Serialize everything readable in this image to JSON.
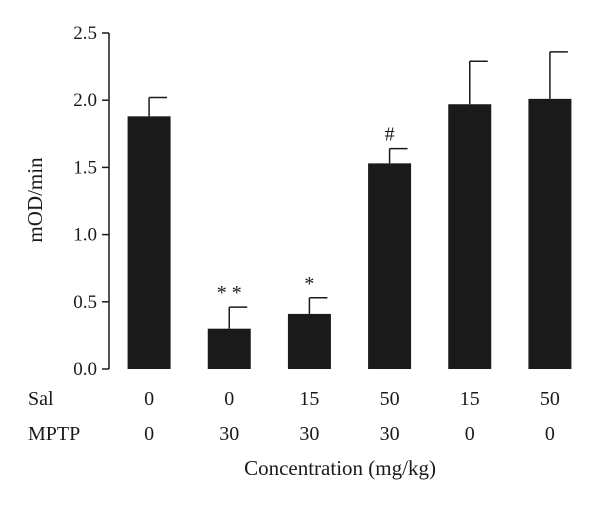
{
  "chart_data": {
    "type": "bar",
    "ylabel": "mOD/min",
    "xlabel": "Concentration (mg/kg)",
    "ylim": [
      0,
      2.5
    ],
    "yticks": [
      "0.0",
      "0.5",
      "1.0",
      "1.5",
      "2.0",
      "2.5"
    ],
    "grid": false,
    "bar_color": "#1a1a1a",
    "group_rows": [
      {
        "name": "Sal",
        "values": [
          "0",
          "0",
          "15",
          "50",
          "15",
          "50"
        ]
      },
      {
        "name": "MPTP",
        "values": [
          "0",
          "30",
          "30",
          "30",
          "0",
          "0"
        ]
      }
    ],
    "values": [
      1.88,
      0.3,
      0.41,
      1.53,
      1.97,
      2.01
    ],
    "errors": [
      0.14,
      0.16,
      0.12,
      0.11,
      0.32,
      0.35
    ],
    "annotations": [
      "",
      "* *",
      "*",
      "#",
      "",
      ""
    ]
  }
}
